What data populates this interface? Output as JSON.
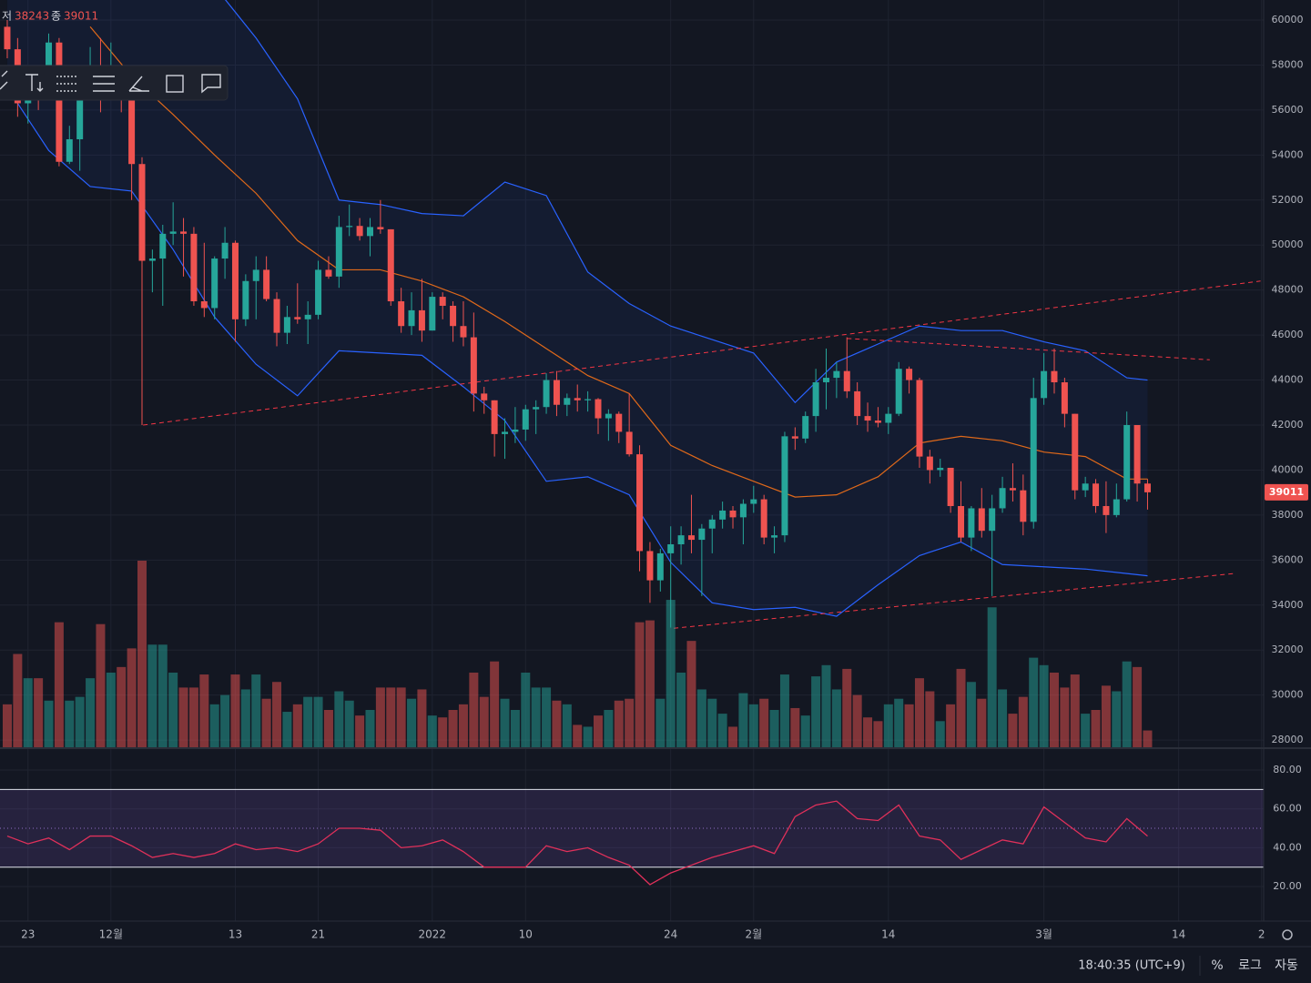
{
  "chart_data": [
    {
      "type": "candlestick",
      "ohlc_labels": {
        "low": "저",
        "close": "종"
      },
      "x": [
        0,
        1,
        2,
        3,
        4,
        5,
        6,
        7,
        8,
        9,
        10,
        11,
        12,
        13,
        14,
        15,
        16,
        17,
        18,
        19,
        20,
        21,
        22,
        23,
        24,
        25,
        26,
        27,
        28,
        29,
        30,
        31,
        32,
        33,
        34,
        35,
        36,
        37,
        38,
        39,
        40,
        41,
        42,
        43,
        44,
        45,
        46,
        47,
        48,
        49,
        50,
        51,
        52,
        53,
        54,
        55,
        56,
        57,
        58,
        59,
        60,
        61,
        62,
        63,
        64,
        65,
        66,
        67,
        68,
        69,
        70,
        71,
        72,
        73,
        74,
        75,
        76,
        77,
        78,
        79,
        80,
        81,
        82,
        83,
        84,
        85,
        86,
        87,
        88,
        89,
        90,
        91,
        92,
        93,
        94,
        95,
        96,
        97,
        98,
        99,
        100,
        101,
        102,
        103,
        104,
        105,
        106,
        107,
        108,
        109,
        110
      ],
      "open": [
        59700,
        58700,
        56300,
        57500,
        57100,
        59000,
        53700,
        54700,
        57300,
        57800,
        57000,
        57200,
        56500,
        53600,
        49300,
        49400,
        50500,
        50600,
        50500,
        47500,
        47200,
        49400,
        50100,
        46700,
        48400,
        48900,
        47600,
        46100,
        46800,
        46700,
        46900,
        48900,
        48600,
        50800,
        50850,
        50400,
        50800,
        50700,
        47500,
        46400,
        47100,
        46200,
        47700,
        47300,
        46400,
        45900,
        43400,
        43100,
        41600,
        41700,
        41800,
        42700,
        42800,
        44000,
        42900,
        43200,
        43100,
        43150,
        42300,
        42500,
        41700,
        40700,
        36400,
        35100,
        36300,
        36700,
        37100,
        36900,
        37400,
        37800,
        38200,
        37900,
        38500,
        38700,
        37000,
        37100,
        41500,
        41400,
        42400,
        43900,
        44100,
        44400,
        43500,
        42400,
        42200,
        42100,
        42500,
        44500,
        44000,
        40600,
        40000,
        40100,
        38400,
        37000,
        38300,
        37300,
        38300,
        39200,
        39100,
        37700,
        43200,
        44400,
        43900,
        42500,
        39100,
        39400,
        38400,
        38000,
        38700,
        42000,
        39400
      ],
      "high": [
        60000,
        59200,
        57800,
        57700,
        59400,
        59200,
        55300,
        57500,
        58800,
        59200,
        59000,
        57400,
        57600,
        53900,
        49800,
        50900,
        51900,
        51200,
        50800,
        50100,
        49500,
        50800,
        50200,
        48700,
        49500,
        49500,
        47900,
        47300,
        48300,
        47500,
        49300,
        49500,
        51300,
        51800,
        51200,
        51200,
        52000,
        50700,
        48100,
        47900,
        48500,
        47900,
        47900,
        47500,
        47500,
        47000,
        43700,
        43100,
        42300,
        42800,
        42900,
        43100,
        44300,
        44400,
        43400,
        43800,
        43500,
        43200,
        42700,
        42600,
        43400,
        41100,
        36800,
        36500,
        37500,
        37500,
        38900,
        37600,
        38000,
        38600,
        38400,
        38700,
        39300,
        38900,
        37500,
        41700,
        41900,
        42600,
        44500,
        45400,
        44800,
        45900,
        43900,
        43000,
        42800,
        42800,
        44800,
        44600,
        44100,
        40900,
        40500,
        40100,
        39500,
        38400,
        39200,
        38900,
        39700,
        40300,
        39800,
        44100,
        45200,
        45400,
        44100,
        42500,
        39700,
        39600,
        39500,
        39400,
        42600,
        42000,
        39600
      ],
      "low": [
        58300,
        55700,
        55400,
        56000,
        56700,
        53500,
        53600,
        53300,
        56700,
        55900,
        56500,
        55900,
        52000,
        42000,
        47900,
        47300,
        50000,
        48600,
        47300,
        46800,
        46700,
        48500,
        45700,
        46400,
        46700,
        47500,
        45500,
        45600,
        46500,
        45600,
        46700,
        48500,
        48100,
        50400,
        50200,
        49500,
        50500,
        47300,
        46100,
        46000,
        45700,
        46200,
        46700,
        45700,
        45500,
        42600,
        42500,
        40600,
        40500,
        41200,
        41300,
        41600,
        42500,
        42400,
        42400,
        42600,
        42600,
        41600,
        41300,
        41200,
        40600,
        35500,
        34100,
        34600,
        33000,
        35800,
        36300,
        34400,
        36300,
        37400,
        37400,
        36700,
        38100,
        36700,
        36300,
        36800,
        40900,
        41200,
        41700,
        42700,
        43200,
        43200,
        42000,
        41700,
        41900,
        41600,
        42400,
        43400,
        40100,
        39400,
        39700,
        38100,
        36800,
        36400,
        37000,
        34400,
        38100,
        38600,
        37100,
        37400,
        42900,
        43400,
        41900,
        38700,
        38800,
        38100,
        37200,
        37900,
        38600,
        38600,
        38243
      ],
      "close": [
        58700,
        56300,
        57500,
        57100,
        59000,
        53700,
        54700,
        57300,
        57800,
        57000,
        57200,
        56500,
        53600,
        49300,
        49400,
        50500,
        50600,
        50500,
        47500,
        47200,
        49400,
        50100,
        46700,
        48400,
        48900,
        47600,
        46100,
        46800,
        46700,
        46900,
        48900,
        48600,
        50800,
        50850,
        50400,
        50800,
        50700,
        47500,
        46400,
        47100,
        46200,
        47700,
        47300,
        46400,
        45900,
        43400,
        43100,
        41600,
        41700,
        41800,
        42700,
        42800,
        44000,
        42900,
        43200,
        43100,
        43150,
        42300,
        42500,
        41700,
        40700,
        36400,
        35100,
        36300,
        36700,
        37100,
        36900,
        37400,
        37800,
        38200,
        37900,
        38500,
        38700,
        37000,
        37100,
        41500,
        41400,
        42400,
        43900,
        44100,
        44400,
        43500,
        42400,
        42200,
        42100,
        42500,
        44500,
        44000,
        40600,
        40000,
        40100,
        38400,
        37000,
        38300,
        37300,
        38300,
        39200,
        39100,
        37700,
        43200,
        44400,
        43900,
        42500,
        39100,
        39400,
        38400,
        38000,
        38700,
        42000,
        39400,
        39011
      ],
      "volume": [
        23,
        50,
        37,
        37,
        25,
        67,
        25,
        27,
        37,
        66,
        40,
        43,
        53,
        100,
        55,
        55,
        40,
        32,
        32,
        39,
        23,
        28,
        39,
        31,
        39,
        26,
        35,
        19,
        23,
        27,
        27,
        20,
        30,
        25,
        17,
        20,
        32,
        32,
        32,
        26,
        31,
        17,
        16,
        20,
        23,
        40,
        27,
        46,
        26,
        20,
        40,
        32,
        32,
        25,
        23,
        12,
        11,
        17,
        20,
        25,
        26,
        67,
        68,
        26,
        79,
        40,
        57,
        31,
        26,
        18,
        11,
        29,
        23,
        26,
        20,
        39,
        21,
        17,
        38,
        44,
        31,
        42,
        28,
        16,
        14,
        23,
        26,
        23,
        37,
        30,
        14,
        23,
        42,
        35,
        26,
        75,
        31,
        18,
        27,
        48,
        44,
        40,
        32,
        39,
        18,
        20,
        33,
        30,
        46,
        43,
        9
      ],
      "up_color": "#26a69a",
      "down_color": "#ef5350",
      "xlim": [
        -0.7,
        121.2
      ],
      "xticks": [
        {
          "value": 2,
          "label": "23"
        },
        {
          "value": 10,
          "label": "12월"
        },
        {
          "value": 22,
          "label": "13"
        },
        {
          "value": 30,
          "label": "21"
        },
        {
          "value": 41,
          "label": "2022"
        },
        {
          "value": 50,
          "label": "10"
        },
        {
          "value": 64,
          "label": "24"
        },
        {
          "value": 72,
          "label": "2월"
        },
        {
          "value": 85,
          "label": "14"
        },
        {
          "value": 100,
          "label": "3월"
        },
        {
          "value": 113,
          "label": "14"
        },
        {
          "value": 121,
          "label": "2"
        }
      ],
      "ylim": [
        27640,
        60890
      ],
      "yticks": [
        28000,
        30000,
        32000,
        34000,
        36000,
        38000,
        40000,
        42000,
        44000,
        46000,
        48000,
        50000,
        52000,
        54000,
        56000,
        58000,
        60000
      ],
      "grid": true,
      "bands": {
        "fill": "rgba(41,98,255,0.07)",
        "upper": {
          "color": "#2962ff",
          "x": [
            20,
            24,
            28,
            32,
            36,
            40,
            44,
            48,
            52,
            56,
            60,
            64,
            68,
            72,
            76,
            80,
            84,
            88,
            92,
            96,
            100,
            104,
            108,
            110
          ],
          "values": [
            61500,
            59200,
            56500,
            52000,
            51800,
            51400,
            51300,
            52800,
            52200,
            48800,
            47400,
            46400,
            45800,
            45200,
            43000,
            44800,
            45600,
            46400,
            46200,
            46200,
            45700,
            45300,
            44100,
            44000
          ]
        },
        "basis": {
          "color": "#e0691a",
          "x": [
            8,
            12,
            16,
            20,
            24,
            28,
            32,
            36,
            40,
            44,
            48,
            52,
            56,
            60,
            64,
            68,
            72,
            76,
            80,
            84,
            88,
            92,
            96,
            100,
            104,
            108,
            110
          ],
          "values": [
            59700,
            57500,
            55800,
            54000,
            52300,
            50200,
            48900,
            48900,
            48400,
            47700,
            46600,
            45400,
            44200,
            43400,
            41100,
            40200,
            39500,
            38800,
            38900,
            39700,
            41200,
            41500,
            41300,
            40800,
            40600,
            39600,
            39600
          ]
        },
        "lower": {
          "color": "#2962ff",
          "x": [
            0,
            4,
            8,
            12,
            16,
            20,
            24,
            28,
            32,
            36,
            40,
            44,
            48,
            52,
            56,
            60,
            64,
            68,
            72,
            76,
            80,
            84,
            88,
            92,
            96,
            100,
            104,
            108,
            110
          ],
          "values": [
            57000,
            54200,
            52600,
            52400,
            49800,
            46800,
            44700,
            43300,
            45300,
            45200,
            45100,
            43700,
            42200,
            39500,
            39700,
            38900,
            35900,
            34100,
            33800,
            33900,
            33500,
            34900,
            36200,
            36800,
            35800,
            35700,
            35600,
            35400,
            35300
          ]
        }
      },
      "trendlines": [
        {
          "color": "#f23645",
          "x": [
            13.1,
            120.9
          ],
          "y": [
            42000,
            48400
          ]
        },
        {
          "color": "#f23645",
          "x": [
            64.3,
            118.3
          ],
          "y": [
            32970,
            35400
          ]
        },
        {
          "color": "#f23645",
          "x": [
            81,
            116
          ],
          "y": [
            45850,
            44900
          ]
        }
      ]
    },
    {
      "type": "line",
      "x": [
        0,
        2,
        4,
        6,
        8,
        10,
        12,
        14,
        16,
        18,
        20,
        22,
        24,
        26,
        28,
        30,
        32,
        34,
        36,
        38,
        40,
        42,
        44,
        46,
        48,
        50,
        52,
        54,
        56,
        58,
        60,
        62,
        64,
        66,
        68,
        70,
        72,
        74,
        76,
        78,
        80,
        82,
        84,
        86,
        88,
        90,
        92,
        94,
        96,
        98,
        100,
        102,
        104,
        106,
        108,
        110
      ],
      "values": [
        46,
        42,
        45,
        39,
        46,
        46,
        41,
        35,
        37,
        35,
        37,
        42,
        39,
        40,
        38,
        42,
        50,
        50,
        49,
        40,
        41,
        44,
        38,
        30,
        30,
        30,
        41,
        38,
        40,
        35,
        31,
        21,
        27,
        31,
        35,
        38,
        41,
        37,
        56,
        62,
        64,
        55,
        54,
        62,
        46,
        44,
        34,
        39,
        44,
        42,
        61,
        53,
        45,
        43,
        55,
        46
      ],
      "color": "#e0305a",
      "ylim": [
        2.2,
        90.8
      ],
      "yticks": [
        {
          "value": 20,
          "label": "20.00"
        },
        {
          "value": 40,
          "label": "40.00"
        },
        {
          "value": 60,
          "label": "60.00"
        },
        {
          "value": 80,
          "label": "80.00"
        }
      ],
      "levels": [
        30,
        70
      ],
      "midline": 50,
      "fill": "rgba(126,87,194,0.18)"
    }
  ],
  "ui": {
    "time": "18:40:35 (UTC+9)",
    "percent": "%",
    "log": "로그",
    "auto": "자동"
  }
}
